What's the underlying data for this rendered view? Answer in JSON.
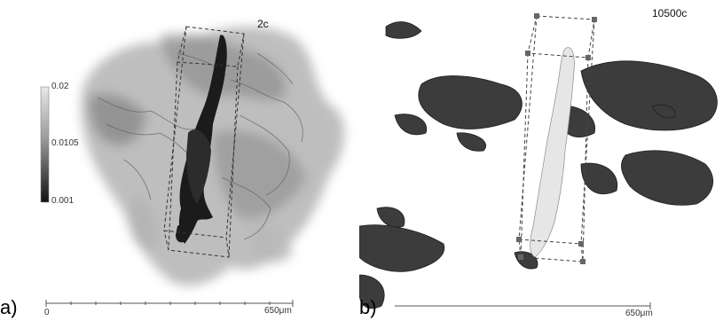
{
  "panel_a": {
    "letter": "a)",
    "cycle_label": "2c",
    "colorbar": {
      "max": "0.02",
      "mid": "0.0105",
      "min": "0.001"
    },
    "scale": {
      "start": "0",
      "end": "650μm"
    }
  },
  "panel_b": {
    "letter": "b)",
    "cycle_label": "10500c",
    "scale": {
      "end": "650μm"
    }
  }
}
